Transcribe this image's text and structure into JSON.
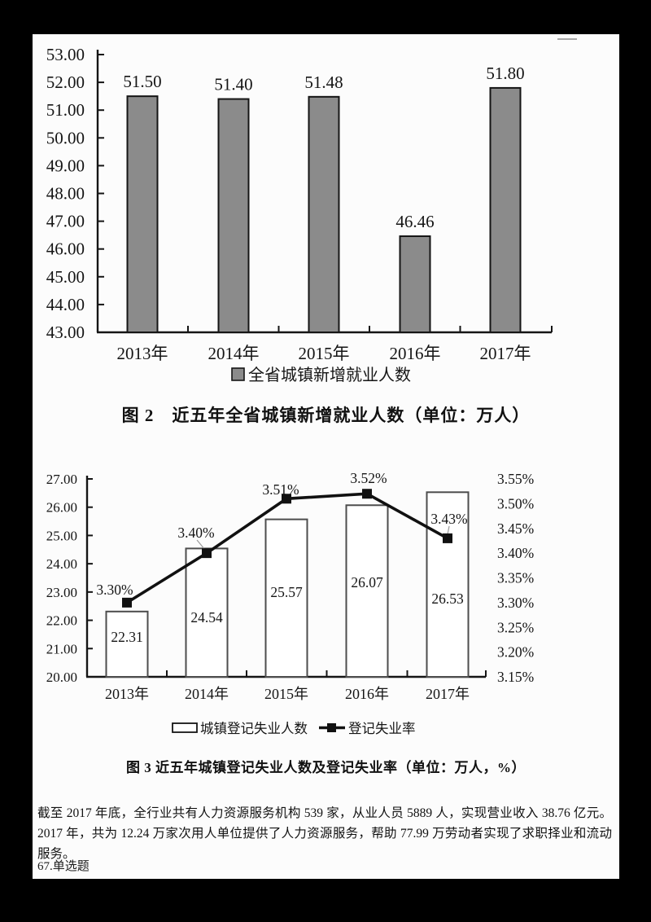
{
  "colors": {
    "outer_background": "#000000",
    "page_background": "#fcfcfc",
    "ink": "#151515",
    "chart1_bar_fill": "#8b8b8b",
    "chart2_bar_fill": "#ffffff",
    "line_color": "#111111"
  },
  "chart_data": [
    {
      "type": "bar",
      "title": "图 2　近五年全省城镇新增就业人数（单位：万人）",
      "categories": [
        "2013年",
        "2014年",
        "2015年",
        "2016年",
        "2017年"
      ],
      "values": [
        51.5,
        51.4,
        51.48,
        46.46,
        51.8
      ],
      "value_labels": [
        "51.50",
        "51.40",
        "51.48",
        "46.46",
        "51.80"
      ],
      "ylim": [
        43.0,
        53.0
      ],
      "ytick_labels": [
        "53.00",
        "52.00",
        "51.00",
        "50.00",
        "49.00",
        "48.00",
        "47.00",
        "46.00",
        "45.00",
        "44.00",
        "43.00"
      ],
      "grid": false,
      "legend_position": "bottom",
      "legend": [
        {
          "name": "全省城镇新增就业人数",
          "swatch": "gray-square"
        }
      ]
    },
    {
      "type": "combo",
      "title": "图 3 近五年城镇登记失业人数及登记失业率（单位：万人，%）",
      "categories": [
        "2013年",
        "2014年",
        "2015年",
        "2016年",
        "2017年"
      ],
      "series": [
        {
          "name": "城镇登记失业人数",
          "type": "bar",
          "axis": "left",
          "values": [
            22.31,
            24.54,
            25.57,
            26.07,
            26.53
          ],
          "labels": [
            "22.31",
            "24.54",
            "25.57",
            "26.07",
            "26.53"
          ]
        },
        {
          "name": "登记失业率",
          "type": "line",
          "axis": "right",
          "values": [
            3.3,
            3.4,
            3.51,
            3.52,
            3.43
          ],
          "labels": [
            "3.30%",
            "3.40%",
            "3.51%",
            "3.52%",
            "3.43%"
          ]
        }
      ],
      "ylim_left": [
        20.0,
        27.0
      ],
      "ytick_labels_left": [
        "27.00",
        "26.00",
        "25.00",
        "24.00",
        "23.00",
        "22.00",
        "21.00",
        "20.00"
      ],
      "ylim_right": [
        3.15,
        3.55
      ],
      "ytick_labels_right": [
        "3.55%",
        "3.50%",
        "3.45%",
        "3.40%",
        "3.35%",
        "3.30%",
        "3.25%",
        "3.20%",
        "3.15%"
      ],
      "grid": false,
      "legend_position": "bottom"
    }
  ],
  "document": {
    "paragraph": "截至 2017 年底，全行业共有人力资源服务机构 539 家，从业人员 5889 人，实现营业收入 38.76 亿元。2017 年，共为 12.24 万家次用人单位提供了人力资源服务，帮助 77.99 万劳动者实现了求职择业和流动服务。",
    "question_label": "67.单选题"
  }
}
